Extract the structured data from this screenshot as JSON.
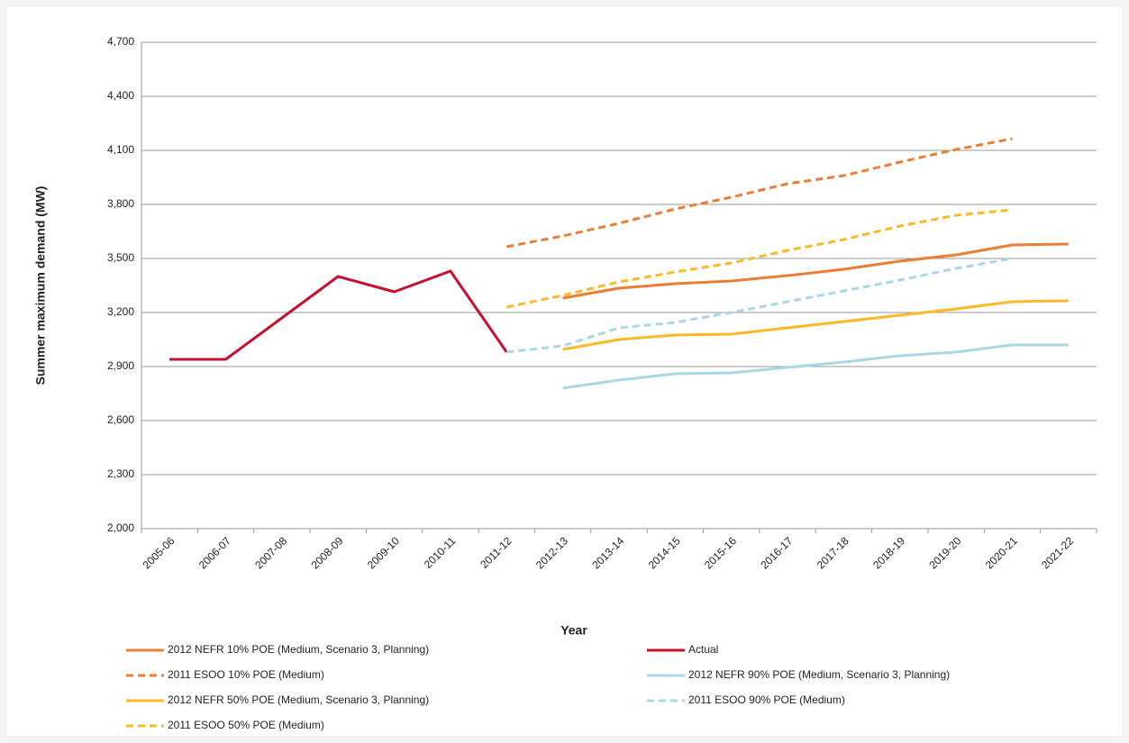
{
  "chart_data": {
    "type": "line",
    "x_label": "Year",
    "y_label": "Summer maximum demand (MW)",
    "categories": [
      "2005-06",
      "2006-07",
      "2007-08",
      "2008-09",
      "2009-10",
      "2010-11",
      "2011-12",
      "2012-13",
      "2013-14",
      "2014-15",
      "2015-16",
      "2016-17",
      "2017-18",
      "2018-19",
      "2019-20",
      "2020-21",
      "2021-22"
    ],
    "ylim": [
      2000,
      4700
    ],
    "yticks": [
      {
        "value": 2000,
        "label": "2,000"
      },
      {
        "value": 2300,
        "label": "2,300"
      },
      {
        "value": 2600,
        "label": "2,600"
      },
      {
        "value": 2900,
        "label": "2,900"
      },
      {
        "value": 3200,
        "label": "3,200"
      },
      {
        "value": 3500,
        "label": "3,500"
      },
      {
        "value": 3800,
        "label": "3,800"
      },
      {
        "value": 4100,
        "label": "4,100"
      },
      {
        "value": 4400,
        "label": "4,400"
      },
      {
        "value": 4700,
        "label": "4,700"
      }
    ],
    "grid": true,
    "legend": "bottom",
    "series": [
      {
        "name": "2012 NEFR 10% POE (Medium, Scenario 3, Planning)",
        "color": "#ed7d31",
        "dashed": false,
        "values": [
          null,
          null,
          null,
          null,
          null,
          null,
          null,
          3280,
          3335,
          3360,
          3375,
          3405,
          3440,
          3485,
          3520,
          3575,
          3580
        ]
      },
      {
        "name": "Actual",
        "color": "#c8102e",
        "dashed": false,
        "values": [
          2940,
          2940,
          3170,
          3400,
          3315,
          3430,
          2980,
          null,
          null,
          null,
          null,
          null,
          null,
          null,
          null,
          null,
          null
        ]
      },
      {
        "name": "2011 ESOO 10% POE (Medium)",
        "color": "#ed7d31",
        "dashed": true,
        "values": [
          null,
          null,
          null,
          null,
          null,
          null,
          3565,
          3625,
          3695,
          3775,
          3840,
          3915,
          3960,
          4035,
          4105,
          4165,
          null
        ]
      },
      {
        "name": "2012 NEFR 90% POE (Medium, Scenario 3, Planning)",
        "color": "#a8d8e6",
        "dashed": false,
        "values": [
          null,
          null,
          null,
          null,
          null,
          null,
          null,
          2780,
          2825,
          2860,
          2865,
          2895,
          2925,
          2960,
          2980,
          3020,
          3020
        ]
      },
      {
        "name": "2012 NEFR 50% POE (Medium, Scenario 3, Planning)",
        "color": "#fdb827",
        "dashed": false,
        "values": [
          null,
          null,
          null,
          null,
          null,
          null,
          null,
          2995,
          3050,
          3075,
          3080,
          3115,
          3150,
          3185,
          3220,
          3260,
          3265
        ]
      },
      {
        "name": "2011 ESOO 90% POE (Medium)",
        "color": "#a8d8e6",
        "dashed": true,
        "values": [
          null,
          null,
          null,
          null,
          null,
          null,
          2980,
          3015,
          3115,
          3145,
          3200,
          3260,
          3320,
          3380,
          3445,
          3500,
          null
        ]
      },
      {
        "name": "2011 ESOO 50% POE (Medium)",
        "color": "#fdb827",
        "dashed": true,
        "values": [
          null,
          null,
          null,
          null,
          null,
          null,
          3230,
          3295,
          3370,
          3425,
          3475,
          3545,
          3605,
          3680,
          3740,
          3770,
          null
        ]
      }
    ]
  }
}
